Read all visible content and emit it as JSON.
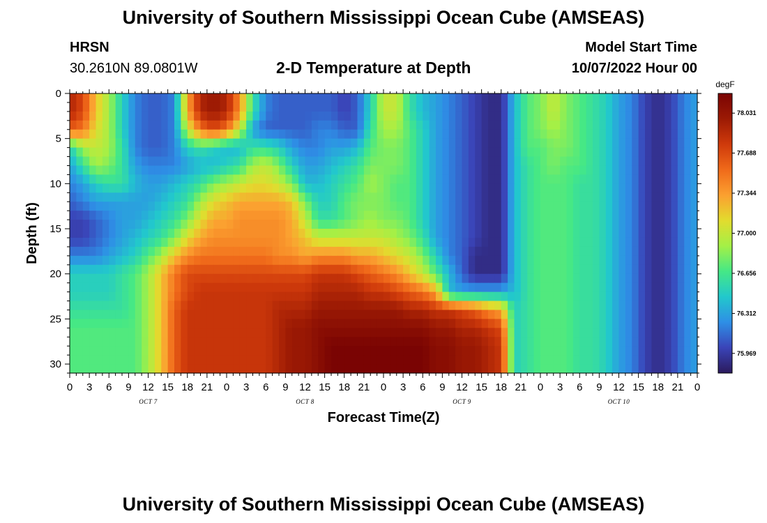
{
  "header": {
    "title": "University of Southern Mississippi Ocean Cube (AMSEAS)",
    "station_id": "HRSN",
    "location": "30.2610N  89.0801W",
    "plot_title": "2-D Temperature at Depth",
    "model_start_label": "Model Start Time",
    "model_start_value": "10/07/2022 Hour 00"
  },
  "footer": {
    "title": "University of Southern Mississippi Ocean Cube (AMSEAS)"
  },
  "chart_data": {
    "type": "heatmap",
    "xlabel": "Forecast Time(Z)",
    "ylabel": "Depth (ft)",
    "x_tick_labels": [
      "0",
      "3",
      "6",
      "9",
      "12",
      "15",
      "18",
      "21",
      "0",
      "3",
      "6",
      "9",
      "12",
      "15",
      "18",
      "21",
      "0",
      "3",
      "6",
      "9",
      "12",
      "15",
      "18",
      "21",
      "0",
      "3",
      "6",
      "9",
      "12",
      "15",
      "18",
      "21",
      "0"
    ],
    "x_range_hours": [
      0,
      96
    ],
    "date_labels": [
      {
        "label": "OCT 7",
        "hour": 12
      },
      {
        "label": "OCT 8",
        "hour": 36
      },
      {
        "label": "OCT 9",
        "hour": 60
      },
      {
        "label": "OCT 10",
        "hour": 84
      }
    ],
    "y_tick_labels": [
      "0",
      "5",
      "10",
      "15",
      "20",
      "25",
      "30"
    ],
    "y_range_ft": [
      0,
      31
    ],
    "colorbar": {
      "unit": "degF",
      "ticks": [
        "78.031",
        "77.688",
        "77.344",
        "77.000",
        "76.656",
        "76.312",
        "75.969"
      ],
      "range_degF": [
        75.8,
        78.2
      ],
      "colors": [
        "#2b1a5c",
        "#3a44b8",
        "#2e8fe6",
        "#22c8cc",
        "#45e886",
        "#a4f046",
        "#e2dc2e",
        "#fba030",
        "#f06a1a",
        "#cf3a0b",
        "#9c1a04",
        "#7a0403"
      ]
    },
    "sample_x_hours": [
      0,
      2,
      4,
      6,
      8,
      10,
      12,
      14,
      16,
      18,
      20,
      22,
      24,
      26,
      28,
      30,
      32,
      34,
      36,
      38,
      40,
      42,
      44,
      46,
      48,
      50,
      52,
      54,
      56,
      58,
      60,
      62,
      64,
      66,
      68,
      70,
      72,
      74,
      76,
      78,
      80,
      82,
      84,
      86,
      88,
      90,
      92,
      94,
      96
    ],
    "sample_depths_ft": [
      0,
      2,
      4,
      6,
      8,
      10,
      12,
      14,
      16,
      18,
      20,
      22,
      24,
      26,
      28,
      30
    ],
    "values_degF": [
      [
        77.9,
        77.7,
        77.2,
        76.9,
        76.5,
        76.2,
        76.1,
        76.1,
        76.2,
        77.3,
        77.9,
        78.0,
        77.9,
        77.4,
        76.6,
        76.2,
        76.1,
        76.1,
        76.1,
        76.1,
        76.1,
        76.0,
        76.1,
        76.5,
        77.0,
        77.0,
        76.6,
        76.4,
        76.3,
        76.2,
        76.1,
        76.0,
        75.9,
        75.9,
        76.4,
        76.7,
        76.8,
        77.0,
        76.8,
        76.7,
        76.6,
        76.5,
        76.3,
        76.2,
        76.0,
        75.9,
        76.0,
        76.2,
        76.3
      ],
      [
        77.9,
        77.7,
        77.2,
        76.9,
        76.5,
        76.2,
        76.1,
        76.1,
        76.2,
        77.3,
        77.9,
        78.0,
        77.9,
        77.4,
        76.6,
        76.2,
        76.1,
        76.1,
        76.1,
        76.1,
        76.1,
        76.0,
        76.1,
        76.5,
        77.0,
        77.0,
        76.6,
        76.4,
        76.3,
        76.2,
        76.1,
        76.0,
        75.9,
        75.9,
        76.4,
        76.7,
        76.8,
        77.0,
        76.8,
        76.7,
        76.6,
        76.5,
        76.3,
        76.2,
        76.0,
        75.9,
        76.0,
        76.2,
        76.3
      ],
      [
        77.6,
        77.5,
        77.1,
        76.9,
        76.5,
        76.2,
        76.1,
        76.1,
        76.2,
        77.0,
        77.5,
        77.7,
        77.5,
        77.0,
        76.3,
        76.1,
        76.1,
        76.1,
        76.1,
        76.2,
        76.2,
        76.1,
        76.1,
        76.6,
        76.9,
        76.9,
        76.7,
        76.5,
        76.3,
        76.2,
        76.1,
        76.0,
        75.9,
        75.9,
        76.4,
        76.7,
        76.8,
        76.9,
        76.8,
        76.7,
        76.6,
        76.5,
        76.3,
        76.2,
        76.0,
        75.9,
        76.0,
        76.2,
        76.3
      ],
      [
        76.5,
        76.9,
        77.0,
        76.9,
        76.6,
        76.2,
        76.1,
        76.1,
        76.2,
        76.5,
        76.6,
        76.5,
        76.4,
        76.4,
        76.6,
        76.6,
        76.5,
        76.3,
        76.2,
        76.2,
        76.3,
        76.3,
        76.4,
        76.7,
        76.8,
        76.8,
        76.7,
        76.5,
        76.3,
        76.2,
        76.1,
        76.0,
        75.9,
        75.9,
        76.4,
        76.7,
        76.7,
        76.8,
        76.8,
        76.7,
        76.6,
        76.5,
        76.3,
        76.2,
        76.0,
        75.9,
        76.0,
        76.2,
        76.3
      ],
      [
        76.3,
        76.6,
        76.9,
        76.8,
        76.6,
        76.3,
        76.2,
        76.2,
        76.2,
        76.3,
        76.4,
        76.4,
        76.5,
        76.6,
        76.9,
        77.0,
        76.8,
        76.5,
        76.3,
        76.3,
        76.4,
        76.5,
        76.6,
        76.8,
        76.8,
        76.8,
        76.7,
        76.5,
        76.3,
        76.2,
        76.1,
        76.0,
        75.9,
        75.9,
        76.4,
        76.6,
        76.7,
        76.8,
        76.7,
        76.7,
        76.6,
        76.5,
        76.3,
        76.2,
        76.0,
        75.9,
        76.0,
        76.2,
        76.3
      ],
      [
        76.2,
        76.3,
        76.5,
        76.6,
        76.6,
        76.4,
        76.3,
        76.3,
        76.4,
        76.5,
        76.6,
        76.8,
        76.9,
        77.0,
        77.1,
        77.1,
        77.0,
        76.8,
        76.4,
        76.4,
        76.5,
        76.6,
        76.7,
        76.9,
        76.8,
        76.7,
        76.7,
        76.5,
        76.3,
        76.2,
        76.1,
        76.0,
        75.9,
        75.9,
        76.4,
        76.6,
        76.7,
        76.7,
        76.7,
        76.6,
        76.6,
        76.5,
        76.3,
        76.2,
        76.0,
        75.9,
        76.0,
        76.2,
        76.3
      ],
      [
        76.1,
        76.2,
        76.3,
        76.3,
        76.3,
        76.3,
        76.3,
        76.4,
        76.5,
        76.6,
        76.9,
        77.1,
        77.2,
        77.3,
        77.3,
        77.3,
        77.3,
        77.2,
        76.8,
        76.5,
        76.5,
        76.7,
        76.8,
        76.8,
        76.8,
        76.7,
        76.7,
        76.5,
        76.3,
        76.2,
        76.1,
        76.0,
        75.9,
        75.9,
        76.4,
        76.6,
        76.7,
        76.7,
        76.7,
        76.6,
        76.6,
        76.5,
        76.3,
        76.2,
        76.0,
        75.9,
        76.0,
        76.2,
        76.3
      ],
      [
        76.0,
        76.0,
        76.1,
        76.2,
        76.3,
        76.3,
        76.4,
        76.5,
        76.6,
        76.8,
        77.1,
        77.3,
        77.3,
        77.4,
        77.4,
        77.4,
        77.4,
        77.3,
        77.0,
        76.6,
        76.6,
        76.7,
        76.8,
        76.9,
        76.8,
        76.8,
        76.7,
        76.5,
        76.3,
        76.2,
        76.1,
        76.0,
        75.9,
        75.9,
        76.4,
        76.6,
        76.7,
        76.7,
        76.7,
        76.6,
        76.6,
        76.5,
        76.3,
        76.2,
        76.0,
        75.9,
        76.0,
        76.2,
        76.3
      ],
      [
        76.0,
        76.0,
        76.1,
        76.2,
        76.3,
        76.4,
        76.5,
        76.6,
        76.8,
        77.1,
        77.3,
        77.4,
        77.4,
        77.4,
        77.4,
        77.4,
        77.4,
        77.3,
        77.2,
        77.0,
        77.0,
        77.0,
        77.0,
        77.0,
        77.0,
        76.9,
        76.8,
        76.6,
        76.3,
        76.2,
        76.1,
        76.0,
        75.9,
        75.9,
        76.4,
        76.6,
        76.7,
        76.7,
        76.7,
        76.6,
        76.6,
        76.5,
        76.3,
        76.2,
        76.0,
        75.9,
        76.0,
        76.2,
        76.3
      ],
      [
        76.2,
        76.2,
        76.2,
        76.3,
        76.4,
        76.5,
        76.7,
        76.9,
        77.2,
        77.4,
        77.5,
        77.5,
        77.5,
        77.5,
        77.5,
        77.5,
        77.4,
        77.4,
        77.3,
        77.4,
        77.4,
        77.4,
        77.3,
        77.3,
        77.2,
        77.1,
        77.0,
        76.8,
        76.5,
        76.2,
        76.1,
        75.9,
        75.9,
        75.9,
        76.4,
        76.6,
        76.7,
        76.7,
        76.7,
        76.6,
        76.6,
        76.5,
        76.3,
        76.2,
        76.0,
        75.9,
        76.0,
        76.2,
        76.3
      ],
      [
        76.5,
        76.5,
        76.5,
        76.5,
        76.6,
        76.7,
        76.9,
        77.2,
        77.5,
        77.7,
        77.7,
        77.7,
        77.7,
        77.7,
        77.7,
        77.7,
        77.7,
        77.7,
        77.7,
        77.8,
        77.8,
        77.8,
        77.7,
        77.6,
        77.5,
        77.4,
        77.2,
        77.0,
        76.7,
        76.4,
        76.1,
        75.9,
        75.9,
        75.9,
        76.4,
        76.6,
        76.7,
        76.7,
        76.7,
        76.6,
        76.6,
        76.5,
        76.3,
        76.2,
        76.0,
        75.9,
        76.0,
        76.2,
        76.3
      ],
      [
        76.5,
        76.5,
        76.5,
        76.5,
        76.6,
        76.7,
        76.9,
        77.2,
        77.5,
        77.7,
        77.8,
        77.8,
        77.8,
        77.8,
        77.8,
        77.8,
        77.8,
        77.8,
        77.8,
        77.9,
        77.9,
        77.9,
        77.9,
        77.8,
        77.8,
        77.7,
        77.6,
        77.5,
        77.3,
        76.4,
        76.3,
        76.3,
        76.3,
        76.3,
        76.4,
        76.6,
        76.7,
        76.7,
        76.7,
        76.6,
        76.6,
        76.5,
        76.3,
        76.2,
        76.0,
        75.9,
        76.0,
        76.2,
        76.3
      ],
      [
        76.6,
        76.6,
        76.6,
        76.6,
        76.6,
        76.7,
        76.9,
        77.2,
        77.6,
        77.8,
        77.8,
        77.8,
        77.8,
        77.8,
        77.8,
        77.8,
        77.9,
        77.9,
        77.9,
        78.0,
        78.0,
        78.0,
        78.0,
        78.0,
        78.0,
        78.0,
        77.9,
        77.9,
        77.8,
        77.8,
        77.7,
        77.6,
        77.4,
        77.3,
        76.5,
        76.6,
        76.7,
        76.7,
        76.7,
        76.6,
        76.6,
        76.5,
        76.3,
        76.2,
        76.0,
        75.9,
        76.0,
        76.2,
        76.3
      ],
      [
        76.7,
        76.7,
        76.7,
        76.7,
        76.7,
        76.7,
        76.9,
        77.2,
        77.6,
        77.8,
        77.8,
        77.8,
        77.8,
        77.8,
        77.8,
        77.8,
        77.9,
        78.0,
        78.0,
        78.1,
        78.1,
        78.1,
        78.1,
        78.1,
        78.1,
        78.1,
        78.1,
        78.1,
        78.0,
        78.0,
        77.9,
        77.9,
        77.8,
        77.7,
        76.5,
        76.6,
        76.7,
        76.7,
        76.7,
        76.6,
        76.6,
        76.5,
        76.3,
        76.2,
        76.0,
        75.9,
        76.0,
        76.2,
        76.3
      ],
      [
        76.7,
        76.7,
        76.7,
        76.7,
        76.7,
        76.7,
        76.9,
        77.2,
        77.6,
        77.8,
        77.8,
        77.8,
        77.8,
        77.8,
        77.8,
        77.8,
        77.9,
        78.0,
        78.0,
        78.1,
        78.2,
        78.2,
        78.2,
        78.2,
        78.2,
        78.2,
        78.2,
        78.2,
        78.1,
        78.1,
        78.0,
        78.0,
        77.9,
        77.8,
        76.5,
        76.6,
        76.7,
        76.7,
        76.7,
        76.6,
        76.6,
        76.5,
        76.3,
        76.2,
        76.0,
        75.9,
        76.0,
        76.2,
        76.3
      ],
      [
        76.7,
        76.7,
        76.7,
        76.7,
        76.7,
        76.7,
        76.9,
        77.2,
        77.6,
        77.8,
        77.8,
        77.8,
        77.8,
        77.8,
        77.8,
        77.8,
        77.9,
        78.0,
        78.0,
        78.1,
        78.2,
        78.2,
        78.2,
        78.2,
        78.2,
        78.2,
        78.2,
        78.2,
        78.1,
        78.1,
        78.0,
        78.0,
        77.9,
        77.8,
        76.5,
        76.6,
        76.7,
        76.7,
        76.7,
        76.6,
        76.6,
        76.5,
        76.3,
        76.2,
        76.0,
        75.9,
        76.0,
        76.2,
        76.3
      ]
    ]
  }
}
